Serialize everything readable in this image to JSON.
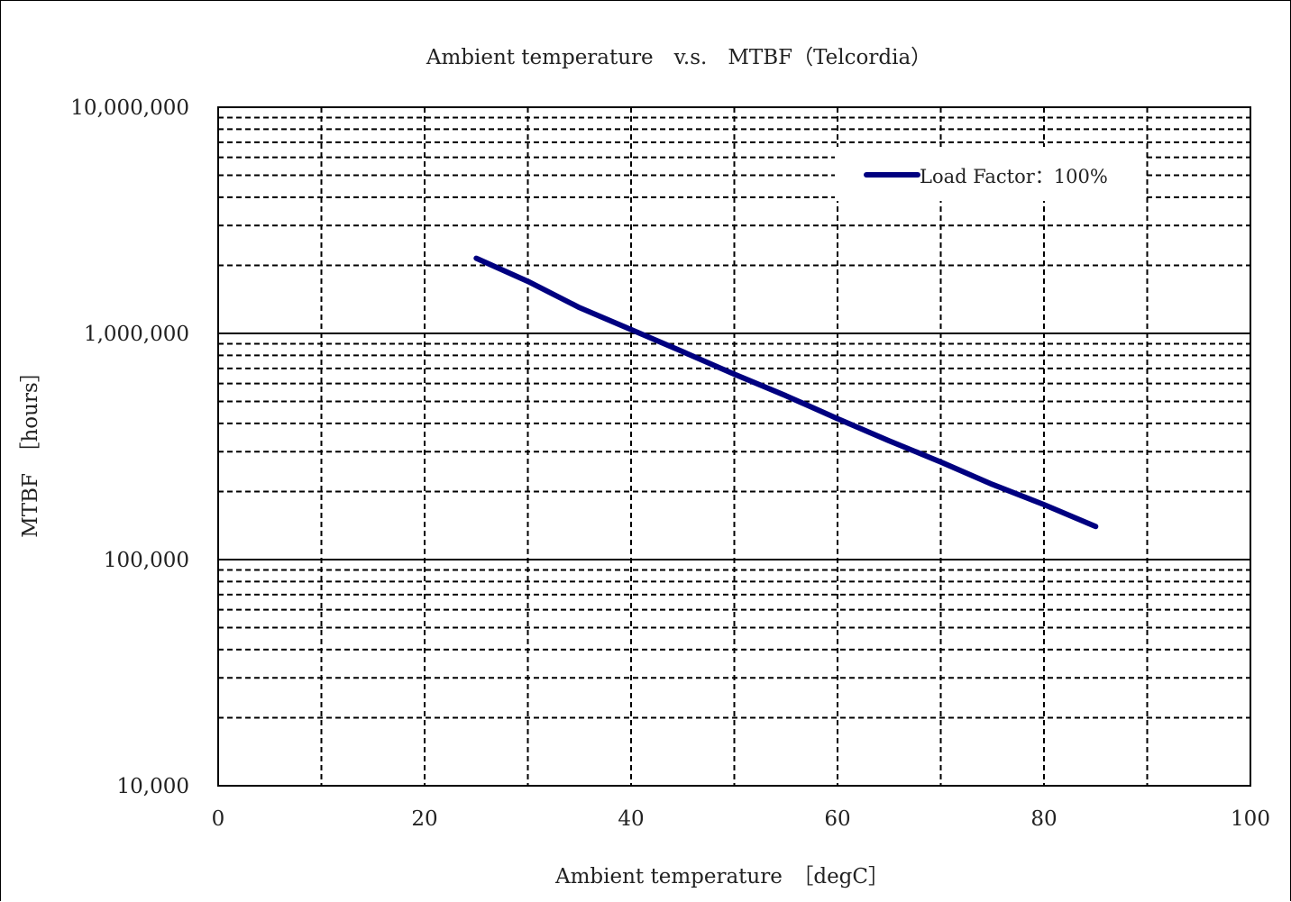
{
  "chart_data": {
    "type": "line",
    "title": "Ambient temperature　v.s.　MTBF（Telcordia）",
    "xlabel": "Ambient temperature　［degC］",
    "ylabel": "MTBF　［hours］",
    "xlim": [
      0,
      100
    ],
    "ylim": [
      10000,
      10000000
    ],
    "y_scale": "log",
    "grid": true,
    "x_ticks": [
      0,
      20,
      40,
      60,
      80,
      100
    ],
    "x_tick_labels": [
      "0",
      "20",
      "40",
      "60",
      "80",
      "100"
    ],
    "y_ticks": [
      10000,
      100000,
      1000000,
      10000000
    ],
    "y_tick_labels": [
      "10,000",
      "100,000",
      "1,000,000",
      "10,000,000"
    ],
    "legend_position": "top-right",
    "series": [
      {
        "name": "Load Factor：100%",
        "color": "#000080",
        "x": [
          25,
          30,
          35,
          40,
          45,
          50,
          55,
          60,
          65,
          70,
          75,
          80,
          85
        ],
        "y": [
          2150000,
          1700000,
          1300000,
          1040000,
          830000,
          660000,
          530000,
          420000,
          335000,
          270000,
          215000,
          175000,
          140000
        ]
      }
    ]
  }
}
